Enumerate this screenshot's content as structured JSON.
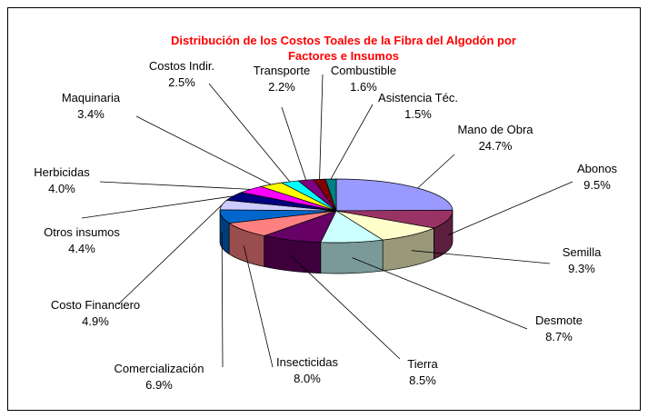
{
  "chart_data": {
    "type": "pie",
    "title": "Distribución de los Costos Toales de la Fibra del Algodón por Factores e Insumos",
    "categories": [
      "Mano de Obra",
      "Abonos",
      "Semilla",
      "Desmote",
      "Tierra",
      "Insecticidas",
      "Comercialización",
      "Costo Financiero",
      "Otros insumos",
      "Herbicidas",
      "Maquinaria",
      "Costos Indir.",
      "Transporte",
      "Combustible",
      "Asistencia Téc."
    ],
    "values": [
      24.7,
      9.5,
      9.3,
      8.7,
      8.5,
      8.0,
      6.9,
      4.9,
      4.4,
      4.0,
      3.4,
      2.5,
      2.2,
      1.6,
      1.5
    ],
    "value_labels": [
      "24.7%",
      "9.5%",
      "9.3%",
      "8.7%",
      "8.5%",
      "8.0%",
      "6.9%",
      "4.9%",
      "4.4%",
      "4.0%",
      "3.4%",
      "2.5%",
      "2.2%",
      "1.6%",
      "1.5%"
    ],
    "colors": [
      "#9999ff",
      "#993366",
      "#ffffcc",
      "#ccffff",
      "#660066",
      "#ff8080",
      "#0066cc",
      "#ccccff",
      "#000080",
      "#ff00ff",
      "#ffff00",
      "#00ffff",
      "#800080",
      "#800000",
      "#008080"
    ]
  }
}
